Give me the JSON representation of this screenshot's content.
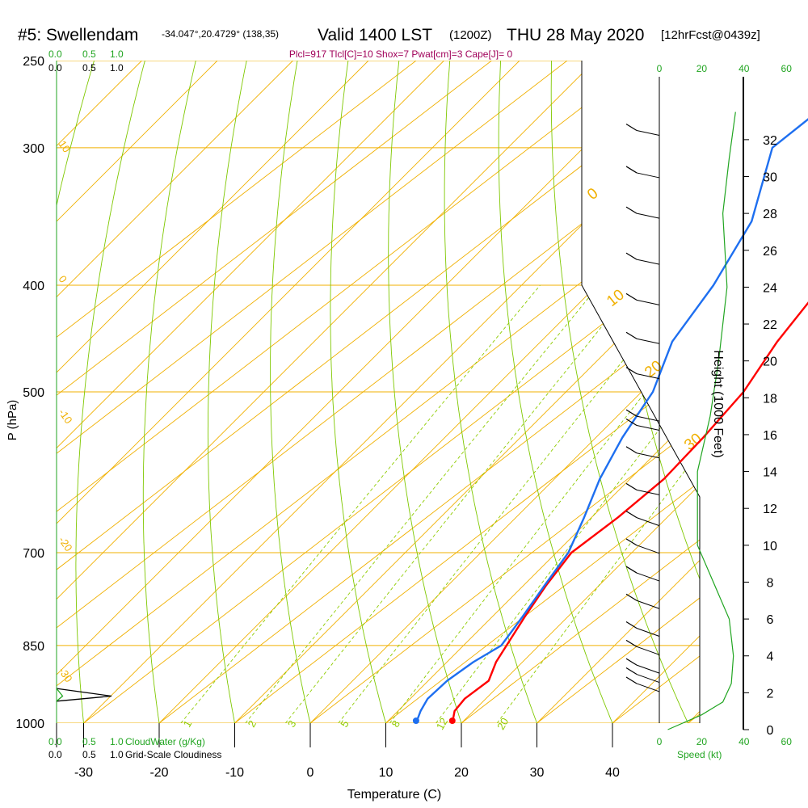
{
  "header": {
    "station": "#5: Swellendam",
    "coords": "-34.047°,20.4729° (138,35)",
    "valid": "Valid 1400 LST",
    "utc": "(1200Z)",
    "date": "THU 28 May 2020",
    "fcst": "[12hrFcst@0439z]"
  },
  "indices": "Plcl=917 Tlcl[C]=10 Shox=7 Pwat[cm]=3 Cape[J]= 0",
  "chart_data": {
    "type": "line",
    "title": "#5: Swellendam",
    "xlabel": "Temperature (C)",
    "ylabel": "P (hPa)",
    "y2label": "Height (1000 Feet)",
    "xlim": [
      -35,
      45
    ],
    "ylim": [
      1000,
      250
    ],
    "y_scale": "log",
    "pressure_ticks": [
      "250",
      "300",
      "400",
      "500",
      "700",
      "850",
      "1000"
    ],
    "temperature_ticks": [
      "-30",
      "-20",
      "-10",
      "0",
      "10",
      "20",
      "30",
      "40"
    ],
    "height_ticks": [
      "0",
      "2",
      "4",
      "6",
      "8",
      "10",
      "12",
      "14",
      "16",
      "18",
      "20",
      "22",
      "24",
      "26",
      "28",
      "30",
      "32"
    ],
    "isotherm_labels": [
      "10",
      "0",
      "-10",
      "-20",
      "-30",
      "0",
      "10",
      "20",
      "30"
    ],
    "mixing_ratio_labels": [
      "1",
      "2",
      "3",
      "5",
      "8",
      "12",
      "20"
    ],
    "speed_ticks": [
      "0",
      "20",
      "40",
      "60"
    ],
    "speed_label": "Speed (kt)",
    "cloud_ticks": [
      "0.0",
      "0.5",
      "1.0"
    ],
    "cloud_water_label": "CloudWater (g/Kg)",
    "cloudiness_label": "Grid-Scale Cloudiness",
    "series": [
      {
        "name": "Temperature",
        "color": "#ff0000",
        "points": [
          [
            18.8,
            1000
          ],
          [
            17.5,
            975
          ],
          [
            17.2,
            950
          ],
          [
            18.0,
            915
          ],
          [
            16.5,
            880
          ],
          [
            15.7,
            850
          ],
          [
            14.3,
            800
          ],
          [
            13.0,
            750
          ],
          [
            12.0,
            700
          ],
          [
            13.5,
            650
          ],
          [
            14.5,
            600
          ],
          [
            14.2,
            550
          ],
          [
            13.5,
            500
          ],
          [
            11.3,
            450
          ],
          [
            9.8,
            400
          ],
          [
            5.0,
            350
          ],
          [
            0.0,
            300
          ],
          [
            -4.2,
            265
          ]
        ]
      },
      {
        "name": "Dewpoint",
        "color": "#1e6ff0",
        "points": [
          [
            14.0,
            1000
          ],
          [
            13.0,
            975
          ],
          [
            12.3,
            950
          ],
          [
            12.5,
            915
          ],
          [
            13.5,
            880
          ],
          [
            15.0,
            850
          ],
          [
            14.0,
            800
          ],
          [
            12.8,
            750
          ],
          [
            11.6,
            700
          ],
          [
            9.0,
            650
          ],
          [
            6.0,
            600
          ],
          [
            3.5,
            550
          ],
          [
            1.5,
            500
          ],
          [
            -2.6,
            450
          ],
          [
            -4.6,
            400
          ],
          [
            -8.0,
            350
          ],
          [
            -15.0,
            300
          ],
          [
            -13.0,
            265
          ]
        ]
      }
    ],
    "wind_heights_kft": [
      32.5,
      30.2,
      28.0,
      25.5,
      23.3,
      21.2,
      19.3,
      17.0,
      16.5,
      15.0,
      13.0,
      11.5,
      10.0,
      8.5,
      7.0,
      5.5,
      4.5,
      3.5,
      3.0,
      2.5
    ],
    "height_profile": [
      [
        0.0,
        4
      ],
      [
        0.8,
        20
      ],
      [
        1.5,
        30
      ],
      [
        2.5,
        34
      ],
      [
        4.0,
        35
      ],
      [
        6.0,
        33
      ],
      [
        10.0,
        18
      ],
      [
        14.0,
        18
      ],
      [
        17.0,
        24
      ],
      [
        20.0,
        28
      ],
      [
        24.0,
        32
      ],
      [
        28.0,
        30
      ],
      [
        31.0,
        33
      ],
      [
        33.5,
        36
      ]
    ],
    "cloudiness": [
      [
        0.0,
        955
      ],
      [
        1.0,
        945
      ],
      [
        0.0,
        930
      ]
    ],
    "cloud_water": [
      [
        0.0,
        955
      ],
      [
        0.15,
        945
      ],
      [
        0.0,
        930
      ]
    ],
    "colors": {
      "isobar": "#f0b000",
      "isotherm": "#f0b000",
      "dry_adiabat": "#7fc800",
      "mixing_ratio": "#8fcc00",
      "speed": "#21a521",
      "indices": "#a0005a"
    },
    "grid": true
  }
}
